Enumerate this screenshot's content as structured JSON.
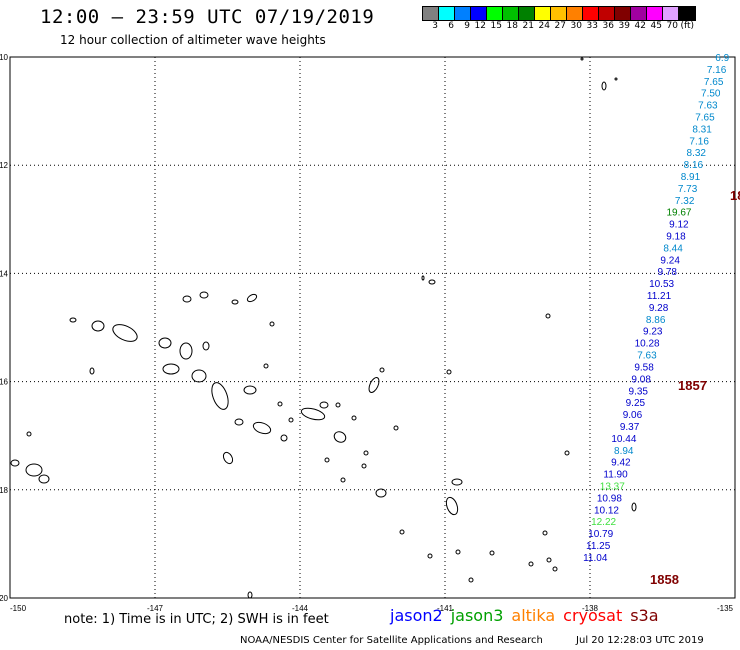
{
  "header": {
    "title": "12:00 – 23:59 UTC 07/19/2019",
    "subtitle": "12 hour collection of altimeter wave heights"
  },
  "colorbar": {
    "colors": [
      "#808080",
      "#00ffff",
      "#0080ff",
      "#0000ff",
      "#00ff00",
      "#00c000",
      "#008000",
      "#ffff00",
      "#ffc000",
      "#ff8000",
      "#ff0000",
      "#c00000",
      "#800000",
      "#a000a0",
      "#ff00ff",
      "#e0a0ff",
      "#000000"
    ],
    "labels": [
      "3",
      "6",
      "9",
      "12",
      "15",
      "18",
      "21",
      "24",
      "27",
      "30",
      "33",
      "36",
      "39",
      "42",
      "45",
      "70",
      "(ft)"
    ]
  },
  "map": {
    "lat_labels": [
      "-10",
      "-12",
      "-14",
      "-16",
      "-18",
      "-20"
    ],
    "lon_labels": [
      "-150",
      "-147",
      "-144",
      "-141",
      "-138",
      "-135"
    ],
    "lat_range": [
      -20,
      -10
    ],
    "lon_range": [
      -150,
      -135
    ],
    "track_label_1857": "1857",
    "track_label_1858": "1858",
    "track_label_edge": "18",
    "obs": [
      {
        "lat": -10.0,
        "lon": -135.12,
        "v": "6.9",
        "c": "#0088cc"
      },
      {
        "lat": -10.22,
        "lon": -135.18,
        "v": "7.16",
        "c": "#0088cc"
      },
      {
        "lat": -10.44,
        "lon": -135.24,
        "v": "7.65",
        "c": "#0088cc"
      },
      {
        "lat": -10.66,
        "lon": -135.3,
        "v": "7.50",
        "c": "#0088cc"
      },
      {
        "lat": -10.88,
        "lon": -135.36,
        "v": "7.63",
        "c": "#0088cc"
      },
      {
        "lat": -11.1,
        "lon": -135.42,
        "v": "7.65",
        "c": "#0088cc"
      },
      {
        "lat": -11.32,
        "lon": -135.48,
        "v": "8.31",
        "c": "#0088cc"
      },
      {
        "lat": -11.54,
        "lon": -135.54,
        "v": "7.16",
        "c": "#0088cc"
      },
      {
        "lat": -11.76,
        "lon": -135.6,
        "v": "8.32",
        "c": "#0088cc"
      },
      {
        "lat": -11.98,
        "lon": -135.66,
        "v": "8.16",
        "c": "#0088cc"
      },
      {
        "lat": -12.2,
        "lon": -135.72,
        "v": "8.91",
        "c": "#0088cc"
      },
      {
        "lat": -12.42,
        "lon": -135.78,
        "v": "7.73",
        "c": "#0088cc"
      },
      {
        "lat": -12.64,
        "lon": -135.84,
        "v": "7.32",
        "c": "#0088cc"
      },
      {
        "lat": -12.86,
        "lon": -135.9,
        "v": "19.67",
        "c": "#008000"
      },
      {
        "lat": -13.08,
        "lon": -135.96,
        "v": "9.12",
        "c": "#0000cc"
      },
      {
        "lat": -13.3,
        "lon": -136.02,
        "v": "9.18",
        "c": "#0000cc"
      },
      {
        "lat": -13.52,
        "lon": -136.08,
        "v": "8.44",
        "c": "#0088cc"
      },
      {
        "lat": -13.74,
        "lon": -136.14,
        "v": "9.24",
        "c": "#0000cc"
      },
      {
        "lat": -13.96,
        "lon": -136.2,
        "v": "9.78",
        "c": "#0000cc"
      },
      {
        "lat": -14.18,
        "lon": -136.26,
        "v": "10.53",
        "c": "#0000cc"
      },
      {
        "lat": -14.4,
        "lon": -136.32,
        "v": "11.21",
        "c": "#0000cc"
      },
      {
        "lat": -14.62,
        "lon": -136.38,
        "v": "9.28",
        "c": "#0000cc"
      },
      {
        "lat": -14.84,
        "lon": -136.44,
        "v": "8.86",
        "c": "#0088cc"
      },
      {
        "lat": -15.06,
        "lon": -136.5,
        "v": "9.23",
        "c": "#0000cc"
      },
      {
        "lat": -15.28,
        "lon": -136.56,
        "v": "10.28",
        "c": "#0000cc"
      },
      {
        "lat": -15.5,
        "lon": -136.62,
        "v": "7.63",
        "c": "#0088cc"
      },
      {
        "lat": -15.72,
        "lon": -136.68,
        "v": "9.58",
        "c": "#0000cc"
      },
      {
        "lat": -15.94,
        "lon": -136.74,
        "v": "9.08",
        "c": "#0000cc"
      },
      {
        "lat": -16.16,
        "lon": -136.8,
        "v": "9.35",
        "c": "#0000cc"
      },
      {
        "lat": -16.38,
        "lon": -136.86,
        "v": "9.25",
        "c": "#0000cc"
      },
      {
        "lat": -16.6,
        "lon": -136.92,
        "v": "9.06",
        "c": "#0000cc"
      },
      {
        "lat": -16.82,
        "lon": -136.98,
        "v": "9.37",
        "c": "#0000cc"
      },
      {
        "lat": -17.04,
        "lon": -137.04,
        "v": "10.44",
        "c": "#0000cc"
      },
      {
        "lat": -17.26,
        "lon": -137.1,
        "v": "8.94",
        "c": "#0088cc"
      },
      {
        "lat": -17.48,
        "lon": -137.16,
        "v": "9.42",
        "c": "#0000cc"
      },
      {
        "lat": -17.7,
        "lon": -137.22,
        "v": "11.90",
        "c": "#0000cc"
      },
      {
        "lat": -17.92,
        "lon": -137.28,
        "v": "13.37",
        "c": "#40e040"
      },
      {
        "lat": -18.14,
        "lon": -137.34,
        "v": "10.98",
        "c": "#0000cc"
      },
      {
        "lat": -18.36,
        "lon": -137.4,
        "v": "10.12",
        "c": "#0000cc"
      },
      {
        "lat": -18.58,
        "lon": -137.46,
        "v": "12.22",
        "c": "#40e040"
      },
      {
        "lat": -18.8,
        "lon": -137.52,
        "v": "10.79",
        "c": "#0000cc"
      },
      {
        "lat": -19.02,
        "lon": -137.58,
        "v": "11.25",
        "c": "#0000cc"
      },
      {
        "lat": -19.24,
        "lon": -137.64,
        "v": "11.04",
        "c": "#0000cc"
      }
    ]
  },
  "footer": {
    "note": "note: 1) Time is in UTC; 2) SWH is in feet",
    "legend": [
      {
        "name": "jason2",
        "color": "#0000ff"
      },
      {
        "name": "jason3",
        "color": "#00a000"
      },
      {
        "name": "altika",
        "color": "#ff8000"
      },
      {
        "name": "cryosat",
        "color": "#ff0000"
      },
      {
        "name": "s3a",
        "color": "#800000"
      }
    ],
    "credit": "NOAA/NESDIS Center for Satellite Applications and Research",
    "timestamp": "Jul 20 12:28:03 UTC 2019"
  }
}
